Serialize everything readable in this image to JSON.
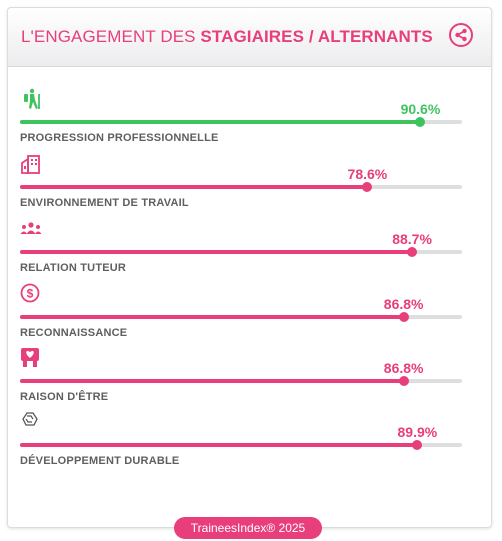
{
  "header": {
    "title_prefix": "L'ENGAGEMENT DES ",
    "title_bold": "STAGIAIRES / ALTERNANTS",
    "share_icon": "share-icon"
  },
  "colors": {
    "accent": "#e83e7b",
    "success": "#3fc35f",
    "track": "#dedede",
    "label": "#5f5f5f"
  },
  "metrics": [
    {
      "label": "PROGRESSION PROFESSIONNELLE",
      "value": "90.6%",
      "percent": 90.6,
      "color": "#3fc35f",
      "icon": "hiker-icon"
    },
    {
      "label": "ENVIRONNEMENT DE TRAVAIL",
      "value": "78.6%",
      "percent": 78.6,
      "color": "#e83e7b",
      "icon": "building-icon"
    },
    {
      "label": "RELATION TUTEUR",
      "value": "88.7%",
      "percent": 88.7,
      "color": "#e83e7b",
      "icon": "people-icon"
    },
    {
      "label": "RECONNAISSANCE",
      "value": "86.8%",
      "percent": 86.8,
      "color": "#e83e7b",
      "icon": "dollar-circle-icon"
    },
    {
      "label": "RAISON D'ÊTRE",
      "value": "86.8%",
      "percent": 86.8,
      "color": "#e83e7b",
      "icon": "heart-hands-icon"
    },
    {
      "label": "DÉVELOPPEMENT DURABLE",
      "value": "89.9%",
      "percent": 89.9,
      "color": "#e83e7b",
      "icon": "recycle-icon"
    }
  ],
  "footer": {
    "badge": "TraineesIndex® 2025"
  }
}
